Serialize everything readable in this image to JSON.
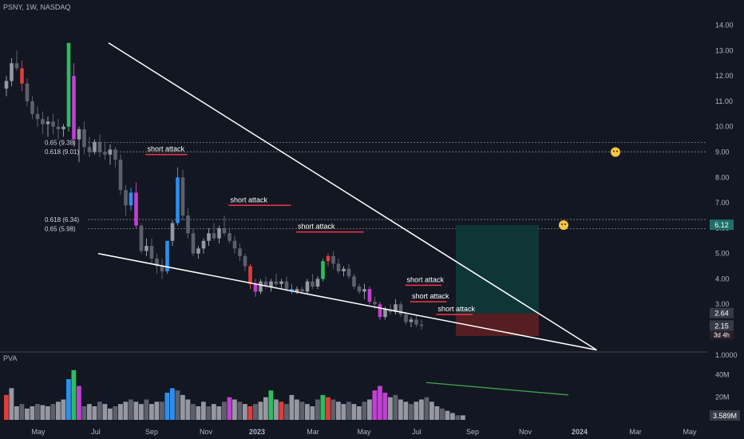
{
  "header": {
    "title": "PSNY, 1W, NASDAQ"
  },
  "volume_panel": {
    "label": "PVA"
  },
  "colors": {
    "background": "#131722",
    "up": "#9598a1",
    "down": "#5d606b",
    "up_volume": "#2ebd5f",
    "climax": "#e03c3c",
    "high_volume_down": "#c040d0",
    "high_volume_up": "#2d8ef0",
    "trendline": "#ffffff",
    "fib_line": "#b2b5be",
    "attack_line": "#f23645",
    "target_zone": "#0f3a3a",
    "stop_zone": "#5c1f24",
    "divergence_line": "#3fa64a"
  },
  "chart_data": [
    {
      "type": "candlestick",
      "title": "",
      "price_axis": {
        "ticks": [
          "14.00",
          "13.00",
          "12.00",
          "11.00",
          "10.00",
          "9.00",
          "8.00",
          "7.00",
          "6.00",
          "5.00",
          "4.00",
          "3.00",
          "2.00",
          "1.0000"
        ],
        "ylim": [
          0.9,
          14.3
        ]
      },
      "time_axis": {
        "ticks": [
          "May",
          "Jul",
          "Sep",
          "Nov",
          "2023",
          "Mar",
          "May",
          "Jul",
          "Sep",
          "Nov",
          "2024",
          "Mar",
          "May"
        ]
      },
      "price_labels": [
        {
          "value": 6.12,
          "text": "6.12",
          "style": "target"
        },
        {
          "value": 2.64,
          "text": "2.64",
          "style": "entry"
        },
        {
          "value": 2.15,
          "text": "2.15",
          "sub": "3d 4h",
          "style": "last"
        }
      ],
      "candles": [
        [
          11.5,
          12.0,
          11.2,
          11.8
        ],
        [
          11.8,
          12.7,
          11.6,
          12.5
        ],
        [
          12.5,
          13.0,
          12.2,
          12.3
        ],
        [
          12.3,
          12.6,
          11.4,
          11.7
        ],
        [
          11.7,
          11.9,
          10.8,
          11.0
        ],
        [
          11.0,
          11.2,
          10.3,
          10.5
        ],
        [
          10.5,
          10.8,
          10.0,
          10.3
        ],
        [
          10.3,
          10.6,
          9.7,
          10.1
        ],
        [
          10.1,
          10.4,
          9.6,
          10.2
        ],
        [
          10.2,
          10.5,
          9.7,
          10.0
        ],
        [
          10.0,
          10.3,
          9.5,
          9.9
        ],
        [
          9.9,
          10.1,
          9.6,
          10.0
        ],
        [
          10.0,
          13.3,
          9.8,
          13.3
        ],
        [
          12.0,
          12.5,
          9.2,
          9.5
        ],
        [
          9.5,
          10.0,
          8.6,
          9.9
        ],
        [
          9.9,
          10.2,
          8.9,
          9.2
        ],
        [
          9.2,
          9.6,
          8.8,
          9.0
        ],
        [
          9.0,
          9.5,
          8.9,
          9.4
        ],
        [
          9.4,
          9.7,
          8.8,
          9.0
        ],
        [
          9.0,
          9.4,
          8.7,
          8.9
        ],
        [
          8.9,
          9.3,
          8.5,
          9.1
        ],
        [
          9.1,
          9.2,
          8.4,
          8.7
        ],
        [
          8.7,
          8.9,
          7.3,
          7.5
        ],
        [
          7.5,
          7.7,
          6.5,
          6.9
        ],
        [
          6.9,
          7.6,
          6.7,
          7.4
        ],
        [
          7.4,
          7.8,
          6.0,
          6.1
        ],
        [
          6.1,
          6.2,
          5.0,
          5.1
        ],
        [
          5.1,
          5.6,
          4.9,
          5.3
        ],
        [
          5.3,
          5.6,
          4.6,
          4.8
        ],
        [
          4.8,
          5.0,
          4.2,
          4.5
        ],
        [
          4.5,
          4.8,
          4.0,
          4.3
        ],
        [
          4.3,
          5.5,
          4.2,
          5.5
        ],
        [
          5.5,
          6.3,
          5.3,
          6.2
        ],
        [
          6.2,
          8.4,
          6.1,
          8.0
        ],
        [
          8.0,
          8.3,
          6.3,
          6.5
        ],
        [
          6.5,
          6.8,
          5.6,
          5.8
        ],
        [
          5.8,
          6.0,
          4.9,
          5.0
        ],
        [
          5.0,
          5.3,
          4.8,
          5.2
        ],
        [
          5.2,
          5.6,
          5.0,
          5.5
        ],
        [
          5.5,
          6.0,
          5.3,
          5.8
        ],
        [
          5.8,
          6.2,
          5.5,
          5.6
        ],
        [
          5.6,
          6.1,
          5.4,
          6.0
        ],
        [
          6.0,
          6.5,
          5.7,
          5.8
        ],
        [
          5.8,
          6.0,
          5.4,
          5.5
        ],
        [
          5.5,
          5.7,
          5.0,
          5.2
        ],
        [
          5.2,
          5.4,
          4.7,
          4.9
        ],
        [
          4.9,
          5.0,
          4.3,
          4.5
        ],
        [
          4.5,
          4.6,
          3.6,
          3.8
        ],
        [
          3.8,
          4.0,
          3.3,
          3.5
        ],
        [
          3.5,
          4.0,
          3.4,
          3.9
        ],
        [
          3.9,
          4.1,
          3.6,
          3.7
        ],
        [
          3.7,
          4.0,
          3.5,
          3.9
        ],
        [
          3.9,
          4.2,
          3.7,
          3.8
        ],
        [
          3.8,
          4.0,
          3.6,
          3.9
        ],
        [
          3.9,
          4.1,
          3.5,
          3.6
        ],
        [
          3.6,
          3.8,
          3.4,
          3.5
        ],
        [
          3.5,
          3.7,
          3.4,
          3.6
        ],
        [
          3.6,
          3.7,
          3.4,
          3.5
        ],
        [
          3.5,
          4.0,
          3.4,
          3.9
        ],
        [
          3.9,
          4.2,
          3.6,
          3.7
        ],
        [
          3.7,
          4.1,
          3.6,
          4.0
        ],
        [
          4.0,
          4.8,
          3.9,
          4.7
        ],
        [
          4.7,
          5.0,
          4.5,
          4.9
        ],
        [
          4.9,
          5.1,
          4.4,
          4.6
        ],
        [
          4.6,
          4.8,
          4.2,
          4.3
        ],
        [
          4.3,
          4.5,
          4.1,
          4.4
        ],
        [
          4.4,
          4.6,
          4.0,
          4.1
        ],
        [
          4.1,
          4.2,
          3.6,
          3.7
        ],
        [
          3.7,
          3.8,
          3.4,
          3.5
        ],
        [
          3.5,
          3.8,
          3.2,
          3.6
        ],
        [
          3.6,
          3.7,
          3.0,
          3.1
        ],
        [
          3.1,
          3.3,
          2.8,
          3.0
        ],
        [
          3.0,
          3.1,
          2.4,
          2.5
        ],
        [
          2.5,
          2.9,
          2.4,
          2.8
        ],
        [
          2.8,
          3.0,
          2.6,
          2.7
        ],
        [
          2.7,
          3.2,
          2.6,
          3.0
        ],
        [
          3.0,
          3.1,
          2.5,
          2.6
        ],
        [
          2.6,
          2.7,
          2.2,
          2.3
        ],
        [
          2.3,
          2.5,
          2.1,
          2.4
        ],
        [
          2.4,
          2.6,
          2.1,
          2.2
        ],
        [
          2.2,
          2.4,
          2.0,
          2.15
        ]
      ],
      "candle_colors": {
        "12": "up_volume",
        "13": "high_volume_down",
        "3": "climax",
        "25": "high_volume_down",
        "33": "high_volume_up",
        "31": "high_volume_up",
        "47": "climax",
        "61": "up_volume",
        "62": "climax",
        "72": "high_volume_down",
        "70": "high_volume_down",
        "24": "high_volume_up",
        "48": "high_volume_down",
        "55": "high_volume_up"
      },
      "fib_levels": [
        {
          "label": "0.65 (9.38)",
          "value": 9.38
        },
        {
          "label": "0.618 (9.01)",
          "value": 9.01
        },
        {
          "label": "0.618 (6.34)",
          "value": 6.34
        },
        {
          "label": "0.65 (5.98)",
          "value": 5.98
        }
      ],
      "annotations": [
        {
          "text": "short attack",
          "candle_from": 21,
          "candle_to": 29,
          "value": 8.9
        },
        {
          "text": "short attack",
          "candle_from": 37,
          "candle_to": 49,
          "value": 6.9
        },
        {
          "text": "short attack",
          "candle_from": 50,
          "candle_to": 63,
          "value": 5.85
        },
        {
          "text": "short attack",
          "candle_from": 71,
          "candle_to": 78,
          "value": 3.75
        },
        {
          "text": "short attack",
          "candle_from": 72,
          "candle_to": 79,
          "value": 3.1
        },
        {
          "text": "short attack",
          "candle_from": 77,
          "candle_to": 84,
          "value": 2.6
        }
      ],
      "trendlines": [
        {
          "from": [
            12,
            13.3
          ],
          "to": [
            91,
            1.2
          ]
        },
        {
          "from": [
            10,
            5.0
          ],
          "to": [
            91,
            1.2
          ]
        }
      ],
      "position": {
        "from_candle": 86,
        "to_candle": 102,
        "target": 6.12,
        "entry": 2.64,
        "stop": 1.75
      },
      "emoji_markers": [
        {
          "candle": 102,
          "value": 9.0
        },
        {
          "candle": 92,
          "value": 6.12
        }
      ]
    },
    {
      "type": "bar",
      "title": "",
      "name": "PVA",
      "y_axis": {
        "ticks": [
          "40M",
          "20M"
        ],
        "ylim": [
          0,
          48
        ]
      },
      "last_label": "3.589M",
      "values": [
        22,
        28,
        12,
        14,
        10,
        12,
        14,
        13,
        12,
        14,
        16,
        18,
        36,
        44,
        30,
        12,
        14,
        12,
        16,
        14,
        10,
        12,
        14,
        16,
        18,
        16,
        14,
        18,
        14,
        16,
        16,
        24,
        28,
        26,
        22,
        18,
        14,
        12,
        16,
        12,
        14,
        12,
        16,
        20,
        18,
        16,
        14,
        12,
        14,
        16,
        20,
        26,
        18,
        16,
        14,
        22,
        18,
        16,
        14,
        12,
        18,
        22,
        20,
        18,
        16,
        14,
        16,
        14,
        12,
        16,
        18,
        26,
        30,
        24,
        20,
        22,
        18,
        16,
        14,
        16,
        18,
        20,
        16,
        12,
        10,
        8,
        6,
        4,
        4
      ],
      "bar_colors": {
        "0": "climax",
        "12": "high_volume_up",
        "13": "up_volume",
        "14": "high_volume_down",
        "31": "high_volume_up",
        "32": "high_volume_up",
        "47": "climax",
        "51": "up_volume",
        "53": "climax",
        "61": "up_volume",
        "62": "climax",
        "71": "high_volume_down",
        "72": "high_volume_down",
        "73": "high_volume_down",
        "43": "high_volume_down"
      },
      "divergence": {
        "from": [
          68,
          33
        ],
        "to": [
          88,
          22
        ]
      }
    }
  ]
}
